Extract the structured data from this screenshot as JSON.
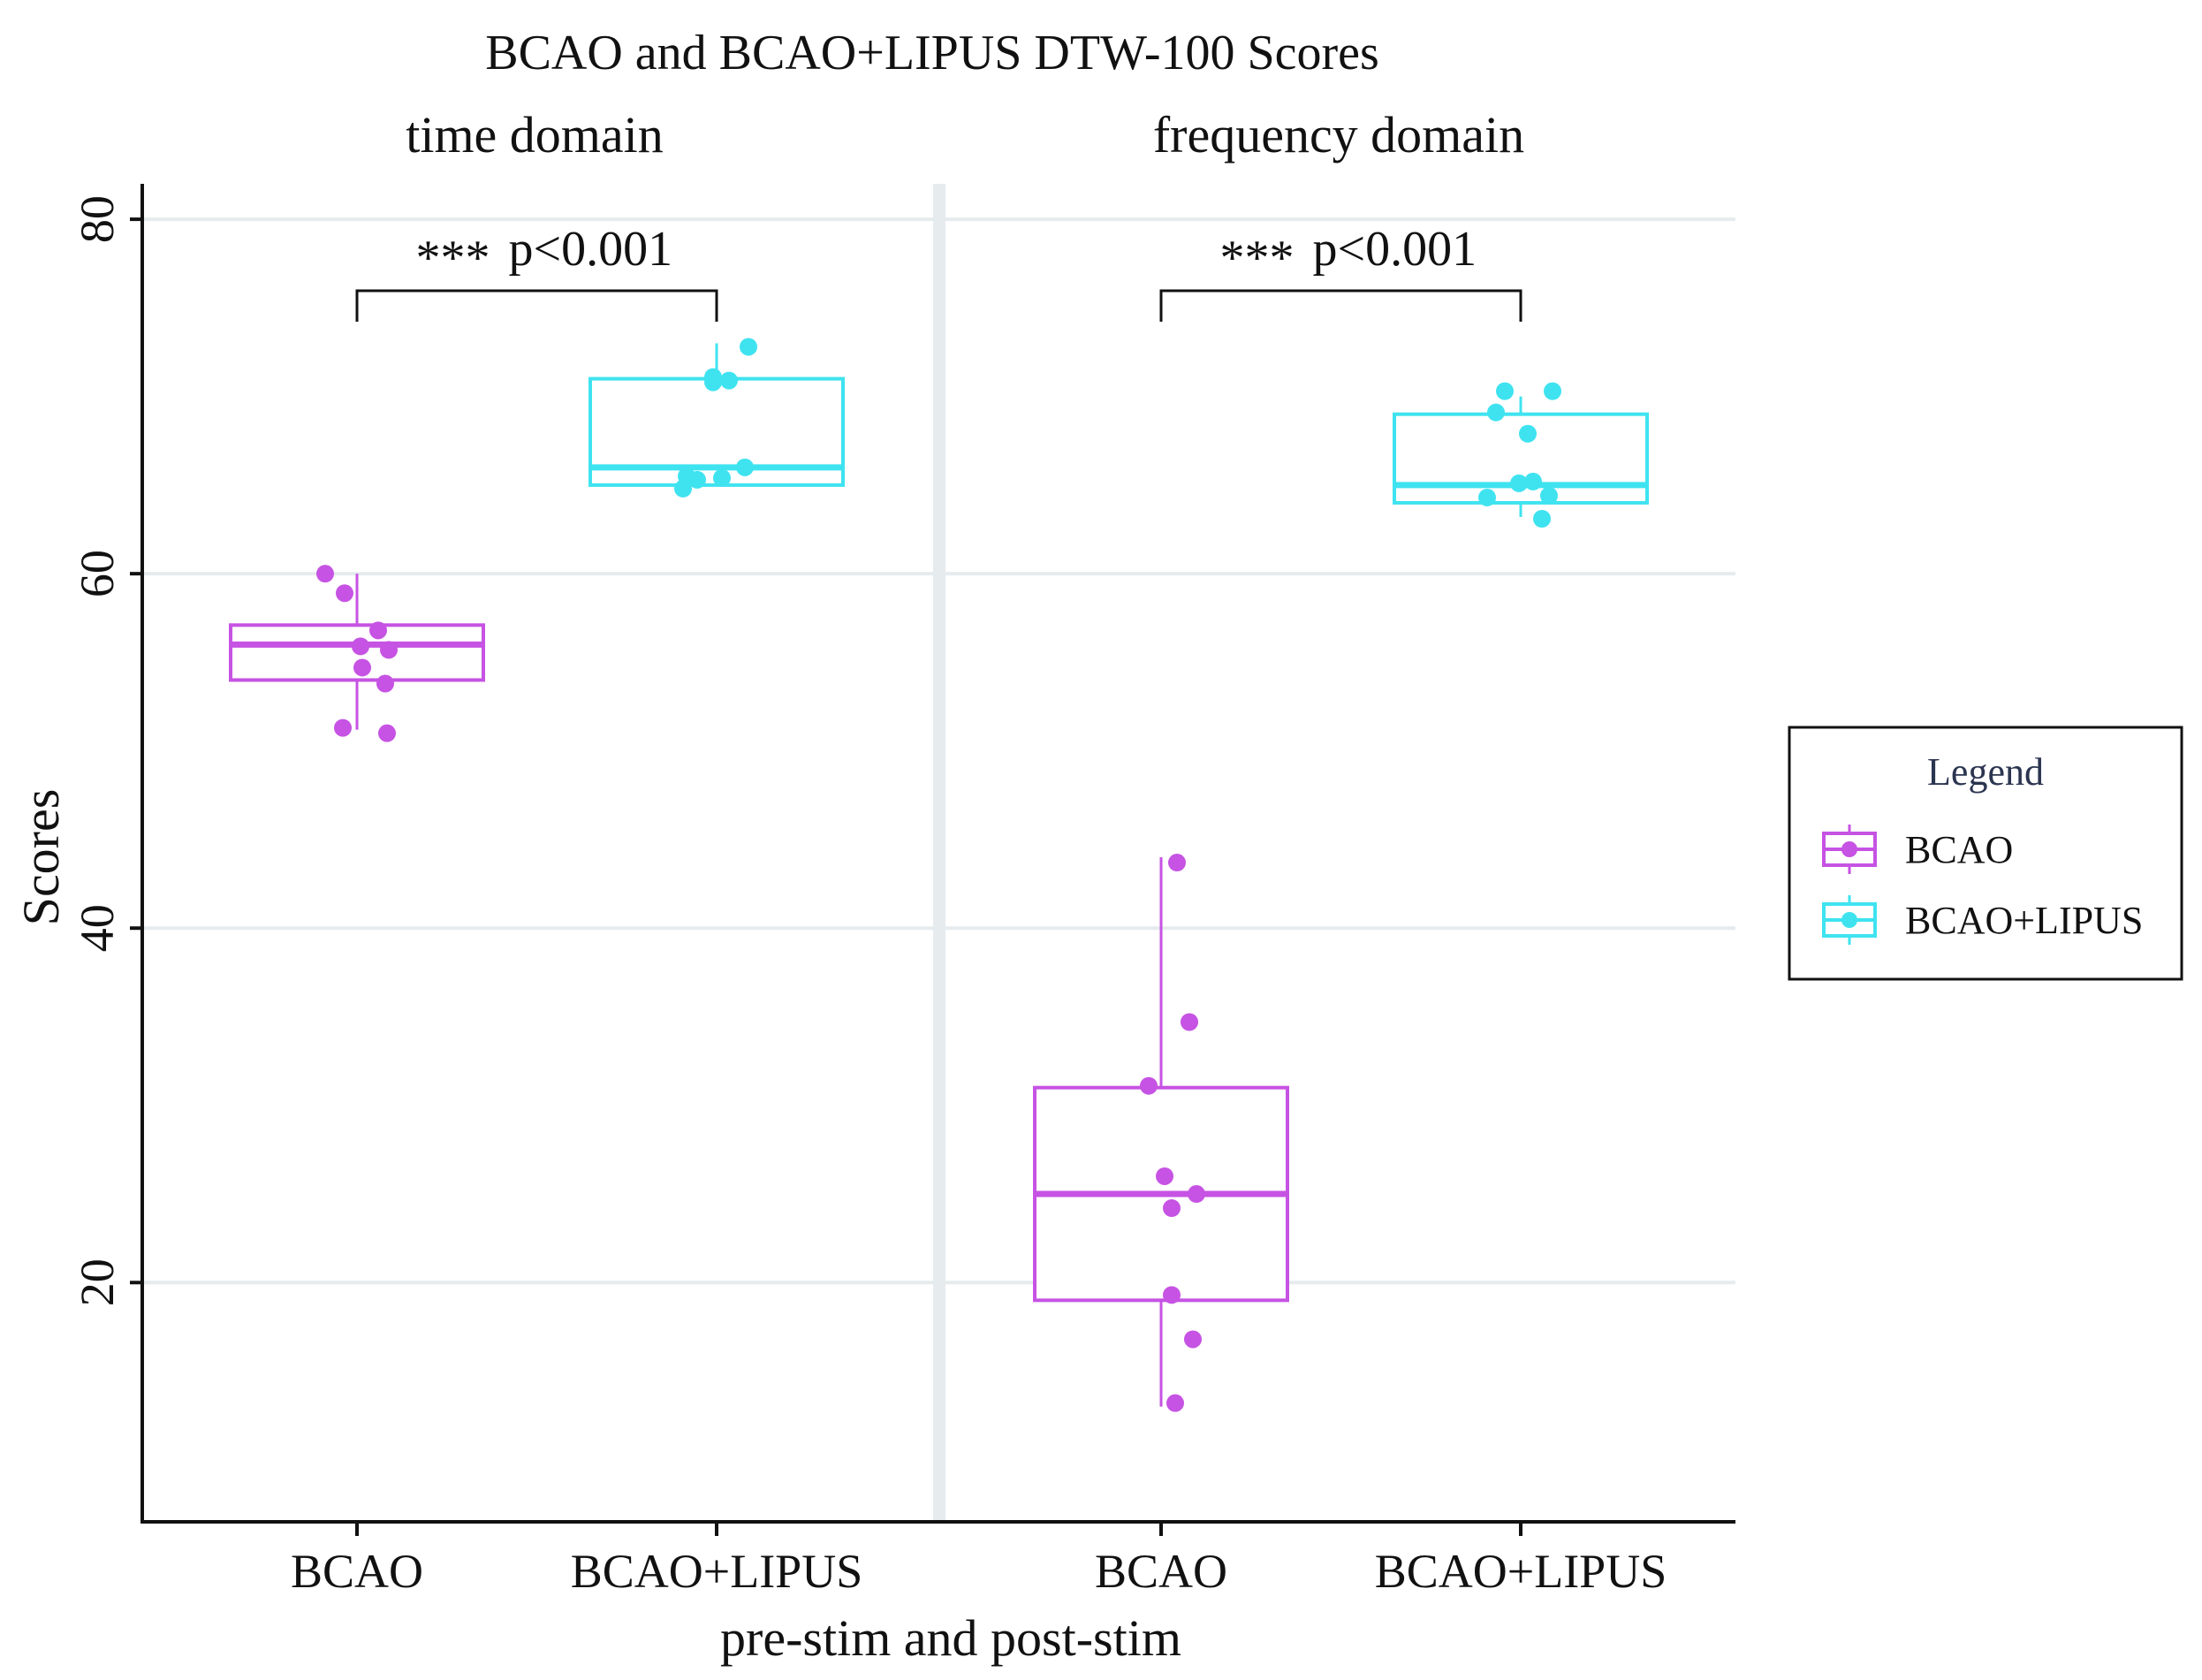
{
  "chart_data": {
    "type": "box",
    "title": "BCAO and BCAO+LIPUS DTW-100 Scores",
    "xlabel": "pre-stim and post-stim",
    "ylabel": "Scores",
    "yticks": [
      20,
      40,
      60,
      80
    ],
    "ylim": [
      6.5,
      82
    ],
    "grid": true,
    "categories": [
      "BCAO",
      "BCAO+LIPUS"
    ],
    "legend": {
      "title": "Legend",
      "position": "right",
      "entries": [
        {
          "name": "BCAO",
          "color": "#c653e3"
        },
        {
          "name": "BCAO+LIPUS",
          "color": "#3fe3f0"
        }
      ]
    },
    "facets": [
      {
        "name": "time domain",
        "significance": {
          "stars": "***",
          "label": "p<0.001"
        },
        "groups": [
          {
            "category": "BCAO",
            "series": "BCAO",
            "box": {
              "whisker_low": 51.2,
              "q1": 54.0,
              "median": 56.0,
              "q3": 57.1,
              "whisker_high": 60.0
            },
            "points": [
              {
                "jitter": -0.18,
                "y": 60.0
              },
              {
                "jitter": -0.07,
                "y": 58.9
              },
              {
                "jitter": 0.12,
                "y": 56.8
              },
              {
                "jitter": 0.02,
                "y": 55.9
              },
              {
                "jitter": 0.18,
                "y": 55.7
              },
              {
                "jitter": 0.03,
                "y": 54.7
              },
              {
                "jitter": 0.16,
                "y": 53.8
              },
              {
                "jitter": -0.08,
                "y": 51.3
              },
              {
                "jitter": 0.17,
                "y": 51.0
              }
            ]
          },
          {
            "category": "BCAO+LIPUS",
            "series": "BCAO+LIPUS",
            "box": {
              "whisker_low": 65.0,
              "q1": 65.0,
              "median": 66.0,
              "q3": 71.0,
              "whisker_high": 73.0
            },
            "points": [
              {
                "jitter": 0.18,
                "y": 72.8
              },
              {
                "jitter": -0.02,
                "y": 71.1
              },
              {
                "jitter": 0.07,
                "y": 70.9
              },
              {
                "jitter": -0.02,
                "y": 70.8
              },
              {
                "jitter": 0.16,
                "y": 66.0
              },
              {
                "jitter": -0.17,
                "y": 65.5
              },
              {
                "jitter": -0.11,
                "y": 65.3
              },
              {
                "jitter": 0.03,
                "y": 65.4
              },
              {
                "jitter": -0.19,
                "y": 64.8
              }
            ]
          }
        ]
      },
      {
        "name": "frequency domain",
        "significance": {
          "stars": "***",
          "label": "p<0.001"
        },
        "groups": [
          {
            "category": "BCAO",
            "series": "BCAO",
            "box": {
              "whisker_low": 13.0,
              "q1": 19.0,
              "median": 25.0,
              "q3": 31.0,
              "whisker_high": 44.0
            },
            "points": [
              {
                "jitter": 0.09,
                "y": 43.7
              },
              {
                "jitter": 0.16,
                "y": 34.7
              },
              {
                "jitter": -0.07,
                "y": 31.1
              },
              {
                "jitter": 0.02,
                "y": 26.0
              },
              {
                "jitter": 0.2,
                "y": 25.0
              },
              {
                "jitter": 0.06,
                "y": 24.2
              },
              {
                "jitter": 0.06,
                "y": 19.3
              },
              {
                "jitter": 0.18,
                "y": 16.8
              },
              {
                "jitter": 0.08,
                "y": 13.2
              }
            ]
          },
          {
            "category": "BCAO+LIPUS",
            "series": "BCAO+LIPUS",
            "box": {
              "whisker_low": 63.2,
              "q1": 64.0,
              "median": 65.0,
              "q3": 69.0,
              "whisker_high": 70.0
            },
            "points": [
              {
                "jitter": -0.09,
                "y": 70.3
              },
              {
                "jitter": 0.18,
                "y": 70.3
              },
              {
                "jitter": -0.14,
                "y": 69.1
              },
              {
                "jitter": 0.04,
                "y": 67.9
              },
              {
                "jitter": -0.01,
                "y": 65.1
              },
              {
                "jitter": 0.07,
                "y": 65.2
              },
              {
                "jitter": -0.19,
                "y": 64.3
              },
              {
                "jitter": 0.16,
                "y": 64.4
              },
              {
                "jitter": 0.12,
                "y": 63.1
              }
            ]
          }
        ]
      }
    ]
  }
}
